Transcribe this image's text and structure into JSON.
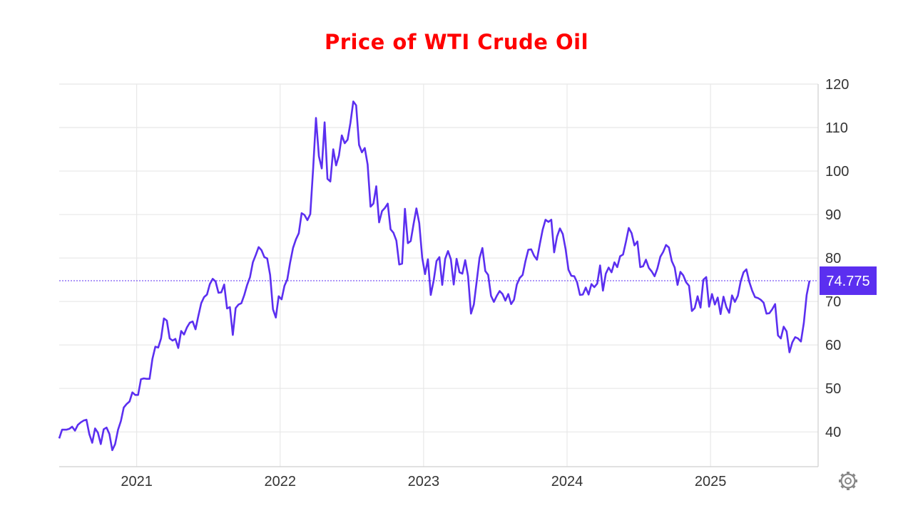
{
  "chart_data": {
    "type": "line",
    "title": "Price of WTI Crude Oil",
    "xlabel": "",
    "ylabel": "",
    "x_range": [
      2020.46,
      2025.75
    ],
    "ylim": [
      32,
      120
    ],
    "y_ticks": [
      "40",
      "50",
      "60",
      "70",
      "80",
      "90",
      "100",
      "110",
      "120"
    ],
    "x_ticks": [
      "2021",
      "2022",
      "2023",
      "2024",
      "2025"
    ],
    "grid": true,
    "current_price": 74.775,
    "current_price_label": "74.775",
    "colors": {
      "line": "#5b2ff0",
      "label_bg": "#5b2ff0",
      "grid": "#e8e8e8",
      "title": "#ff0000"
    },
    "series": [
      {
        "points": [
          [
            2020.46,
            38.5
          ],
          [
            2020.48,
            40.5
          ],
          [
            2020.51,
            40.5
          ],
          [
            2020.53,
            40.7
          ],
          [
            2020.55,
            41.2
          ],
          [
            2020.57,
            40.3
          ],
          [
            2020.59,
            41.6
          ],
          [
            2020.61,
            42.2
          ],
          [
            2020.63,
            42.6
          ],
          [
            2020.65,
            42.8
          ],
          [
            2020.67,
            39.5
          ],
          [
            2020.69,
            37.5
          ],
          [
            2020.71,
            40.8
          ],
          [
            2020.73,
            39.8
          ],
          [
            2020.75,
            37.2
          ],
          [
            2020.77,
            40.6
          ],
          [
            2020.79,
            41.0
          ],
          [
            2020.81,
            39.5
          ],
          [
            2020.83,
            35.8
          ],
          [
            2020.85,
            37.2
          ],
          [
            2020.87,
            40.5
          ],
          [
            2020.89,
            42.5
          ],
          [
            2020.91,
            45.6
          ],
          [
            2020.93,
            46.4
          ],
          [
            2020.95,
            47.0
          ],
          [
            2020.97,
            49.1
          ],
          [
            2020.99,
            48.5
          ],
          [
            2021.01,
            48.5
          ],
          [
            2021.03,
            52.1
          ],
          [
            2021.05,
            52.3
          ],
          [
            2021.07,
            52.2
          ],
          [
            2021.09,
            52.2
          ],
          [
            2021.11,
            56.8
          ],
          [
            2021.13,
            59.6
          ],
          [
            2021.15,
            59.4
          ],
          [
            2021.17,
            61.5
          ],
          [
            2021.19,
            66.1
          ],
          [
            2021.21,
            65.6
          ],
          [
            2021.23,
            61.5
          ],
          [
            2021.25,
            61.0
          ],
          [
            2021.27,
            61.4
          ],
          [
            2021.29,
            59.3
          ],
          [
            2021.31,
            63.2
          ],
          [
            2021.33,
            62.4
          ],
          [
            2021.35,
            64.0
          ],
          [
            2021.37,
            65.1
          ],
          [
            2021.39,
            65.4
          ],
          [
            2021.41,
            63.6
          ],
          [
            2021.43,
            66.7
          ],
          [
            2021.45,
            69.6
          ],
          [
            2021.47,
            71.0
          ],
          [
            2021.49,
            71.6
          ],
          [
            2021.51,
            74.0
          ],
          [
            2021.53,
            75.2
          ],
          [
            2021.55,
            74.6
          ],
          [
            2021.57,
            72.0
          ],
          [
            2021.59,
            72.1
          ],
          [
            2021.61,
            73.9
          ],
          [
            2021.63,
            68.4
          ],
          [
            2021.65,
            68.7
          ],
          [
            2021.67,
            62.3
          ],
          [
            2021.69,
            68.5
          ],
          [
            2021.71,
            69.3
          ],
          [
            2021.73,
            69.6
          ],
          [
            2021.75,
            71.5
          ],
          [
            2021.77,
            73.8
          ],
          [
            2021.79,
            75.6
          ],
          [
            2021.81,
            79.0
          ],
          [
            2021.83,
            80.7
          ],
          [
            2021.85,
            82.5
          ],
          [
            2021.87,
            81.8
          ],
          [
            2021.89,
            80.2
          ],
          [
            2021.91,
            79.9
          ],
          [
            2021.93,
            76.1
          ],
          [
            2021.95,
            68.2
          ],
          [
            2021.97,
            66.3
          ],
          [
            2021.99,
            71.2
          ],
          [
            2022.01,
            70.5
          ],
          [
            2022.03,
            73.6
          ],
          [
            2022.05,
            75.1
          ],
          [
            2022.07,
            79.0
          ],
          [
            2022.09,
            82.3
          ],
          [
            2022.11,
            84.3
          ],
          [
            2022.13,
            85.7
          ],
          [
            2022.15,
            90.3
          ],
          [
            2022.17,
            89.9
          ],
          [
            2022.19,
            88.7
          ],
          [
            2022.21,
            90.1
          ],
          [
            2022.23,
            100.5
          ],
          [
            2022.25,
            112.2
          ],
          [
            2022.27,
            103.4
          ],
          [
            2022.29,
            100.6
          ],
          [
            2022.31,
            111.2
          ],
          [
            2022.33,
            98.2
          ],
          [
            2022.35,
            97.6
          ],
          [
            2022.37,
            105.0
          ],
          [
            2022.39,
            101.3
          ],
          [
            2022.41,
            103.6
          ],
          [
            2022.43,
            108.2
          ],
          [
            2022.45,
            106.4
          ],
          [
            2022.47,
            107.2
          ],
          [
            2022.49,
            111.1
          ],
          [
            2022.51,
            116.0
          ],
          [
            2022.53,
            115.1
          ],
          [
            2022.55,
            106.0
          ],
          [
            2022.57,
            104.3
          ],
          [
            2022.59,
            105.3
          ],
          [
            2022.61,
            101.5
          ],
          [
            2022.63,
            91.8
          ],
          [
            2022.65,
            92.5
          ],
          [
            2022.67,
            96.5
          ],
          [
            2022.69,
            88.2
          ],
          [
            2022.71,
            90.8
          ],
          [
            2022.73,
            91.5
          ],
          [
            2022.75,
            92.5
          ],
          [
            2022.77,
            86.6
          ],
          [
            2022.79,
            85.8
          ],
          [
            2022.81,
            84.0
          ],
          [
            2022.83,
            78.5
          ],
          [
            2022.85,
            78.7
          ],
          [
            2022.87,
            91.3
          ],
          [
            2022.89,
            83.4
          ],
          [
            2022.91,
            83.9
          ],
          [
            2022.93,
            87.8
          ],
          [
            2022.95,
            91.4
          ],
          [
            2022.97,
            88.0
          ],
          [
            2022.99,
            80.1
          ],
          [
            2023.01,
            76.3
          ],
          [
            2023.03,
            79.7
          ],
          [
            2023.05,
            71.5
          ],
          [
            2023.07,
            74.8
          ],
          [
            2023.09,
            79.3
          ],
          [
            2023.11,
            80.2
          ],
          [
            2023.13,
            73.8
          ],
          [
            2023.15,
            79.8
          ],
          [
            2023.17,
            81.6
          ],
          [
            2023.19,
            79.7
          ],
          [
            2023.21,
            73.9
          ],
          [
            2023.23,
            79.8
          ],
          [
            2023.25,
            76.7
          ],
          [
            2023.27,
            76.4
          ],
          [
            2023.29,
            79.5
          ],
          [
            2023.31,
            75.8
          ],
          [
            2023.33,
            67.2
          ],
          [
            2023.35,
            69.3
          ],
          [
            2023.37,
            74.6
          ],
          [
            2023.39,
            80.0
          ],
          [
            2023.41,
            82.3
          ],
          [
            2023.43,
            77.0
          ],
          [
            2023.45,
            76.1
          ],
          [
            2023.47,
            71.3
          ],
          [
            2023.49,
            69.9
          ],
          [
            2023.51,
            71.3
          ],
          [
            2023.53,
            72.4
          ],
          [
            2023.55,
            71.7
          ],
          [
            2023.57,
            70.2
          ],
          [
            2023.59,
            71.7
          ],
          [
            2023.61,
            69.4
          ],
          [
            2023.63,
            70.4
          ],
          [
            2023.65,
            73.9
          ],
          [
            2023.67,
            75.4
          ],
          [
            2023.69,
            76.1
          ],
          [
            2023.71,
            79.3
          ],
          [
            2023.73,
            81.9
          ],
          [
            2023.75,
            82.0
          ],
          [
            2023.77,
            80.5
          ],
          [
            2023.79,
            79.6
          ],
          [
            2023.81,
            83.2
          ],
          [
            2023.83,
            86.5
          ],
          [
            2023.85,
            88.8
          ],
          [
            2023.87,
            88.3
          ],
          [
            2023.89,
            88.8
          ],
          [
            2023.91,
            81.3
          ],
          [
            2023.93,
            84.9
          ],
          [
            2023.95,
            86.8
          ],
          [
            2023.97,
            85.5
          ],
          [
            2023.99,
            82.0
          ],
          [
            2024.01,
            77.3
          ],
          [
            2024.03,
            75.9
          ],
          [
            2024.05,
            75.8
          ],
          [
            2024.07,
            74.4
          ],
          [
            2024.09,
            71.5
          ],
          [
            2024.11,
            71.6
          ],
          [
            2024.13,
            73.2
          ],
          [
            2024.15,
            71.6
          ],
          [
            2024.17,
            74.0
          ],
          [
            2024.19,
            73.3
          ],
          [
            2024.21,
            74.1
          ],
          [
            2024.23,
            78.3
          ],
          [
            2024.25,
            72.5
          ],
          [
            2024.27,
            76.4
          ],
          [
            2024.29,
            77.8
          ],
          [
            2024.31,
            76.7
          ],
          [
            2024.33,
            79.0
          ],
          [
            2024.35,
            77.9
          ],
          [
            2024.37,
            80.4
          ],
          [
            2024.39,
            80.8
          ],
          [
            2024.41,
            83.7
          ],
          [
            2024.43,
            86.9
          ],
          [
            2024.45,
            85.7
          ],
          [
            2024.47,
            82.9
          ],
          [
            2024.49,
            83.8
          ],
          [
            2024.51,
            77.9
          ],
          [
            2024.53,
            78.1
          ],
          [
            2024.55,
            79.6
          ],
          [
            2024.57,
            77.7
          ],
          [
            2024.59,
            76.9
          ],
          [
            2024.61,
            75.8
          ],
          [
            2024.63,
            77.6
          ],
          [
            2024.65,
            80.3
          ],
          [
            2024.67,
            81.4
          ],
          [
            2024.69,
            83.0
          ],
          [
            2024.71,
            82.4
          ],
          [
            2024.73,
            79.3
          ],
          [
            2024.75,
            77.8
          ],
          [
            2024.77,
            73.8
          ],
          [
            2024.79,
            76.8
          ],
          [
            2024.81,
            76.0
          ],
          [
            2024.83,
            74.4
          ],
          [
            2024.85,
            73.6
          ],
          [
            2024.87,
            67.8
          ],
          [
            2024.89,
            68.5
          ],
          [
            2024.91,
            71.2
          ],
          [
            2024.93,
            68.6
          ],
          [
            2024.95,
            75.0
          ],
          [
            2024.97,
            75.6
          ],
          [
            2024.99,
            68.8
          ],
          [
            2025.01,
            71.7
          ],
          [
            2025.03,
            69.3
          ],
          [
            2025.05,
            70.9
          ],
          [
            2025.07,
            67.1
          ],
          [
            2025.09,
            71.1
          ],
          [
            2025.11,
            68.7
          ],
          [
            2025.13,
            67.4
          ],
          [
            2025.15,
            71.4
          ],
          [
            2025.17,
            69.9
          ],
          [
            2025.19,
            71.3
          ],
          [
            2025.21,
            74.6
          ],
          [
            2025.23,
            76.7
          ],
          [
            2025.25,
            77.4
          ],
          [
            2025.27,
            74.5
          ],
          [
            2025.29,
            72.5
          ],
          [
            2025.31,
            71.0
          ],
          [
            2025.33,
            70.8
          ],
          [
            2025.35,
            70.4
          ],
          [
            2025.37,
            69.7
          ],
          [
            2025.39,
            67.2
          ],
          [
            2025.41,
            67.3
          ],
          [
            2025.43,
            68.2
          ],
          [
            2025.45,
            69.4
          ],
          [
            2025.47,
            62.2
          ],
          [
            2025.49,
            61.5
          ],
          [
            2025.51,
            64.2
          ],
          [
            2025.53,
            63.1
          ],
          [
            2025.55,
            58.3
          ],
          [
            2025.57,
            60.6
          ],
          [
            2025.59,
            61.8
          ],
          [
            2025.61,
            61.5
          ],
          [
            2025.63,
            60.8
          ],
          [
            2025.65,
            65.0
          ],
          [
            2025.67,
            71.5
          ],
          [
            2025.69,
            74.775
          ]
        ]
      }
    ]
  }
}
